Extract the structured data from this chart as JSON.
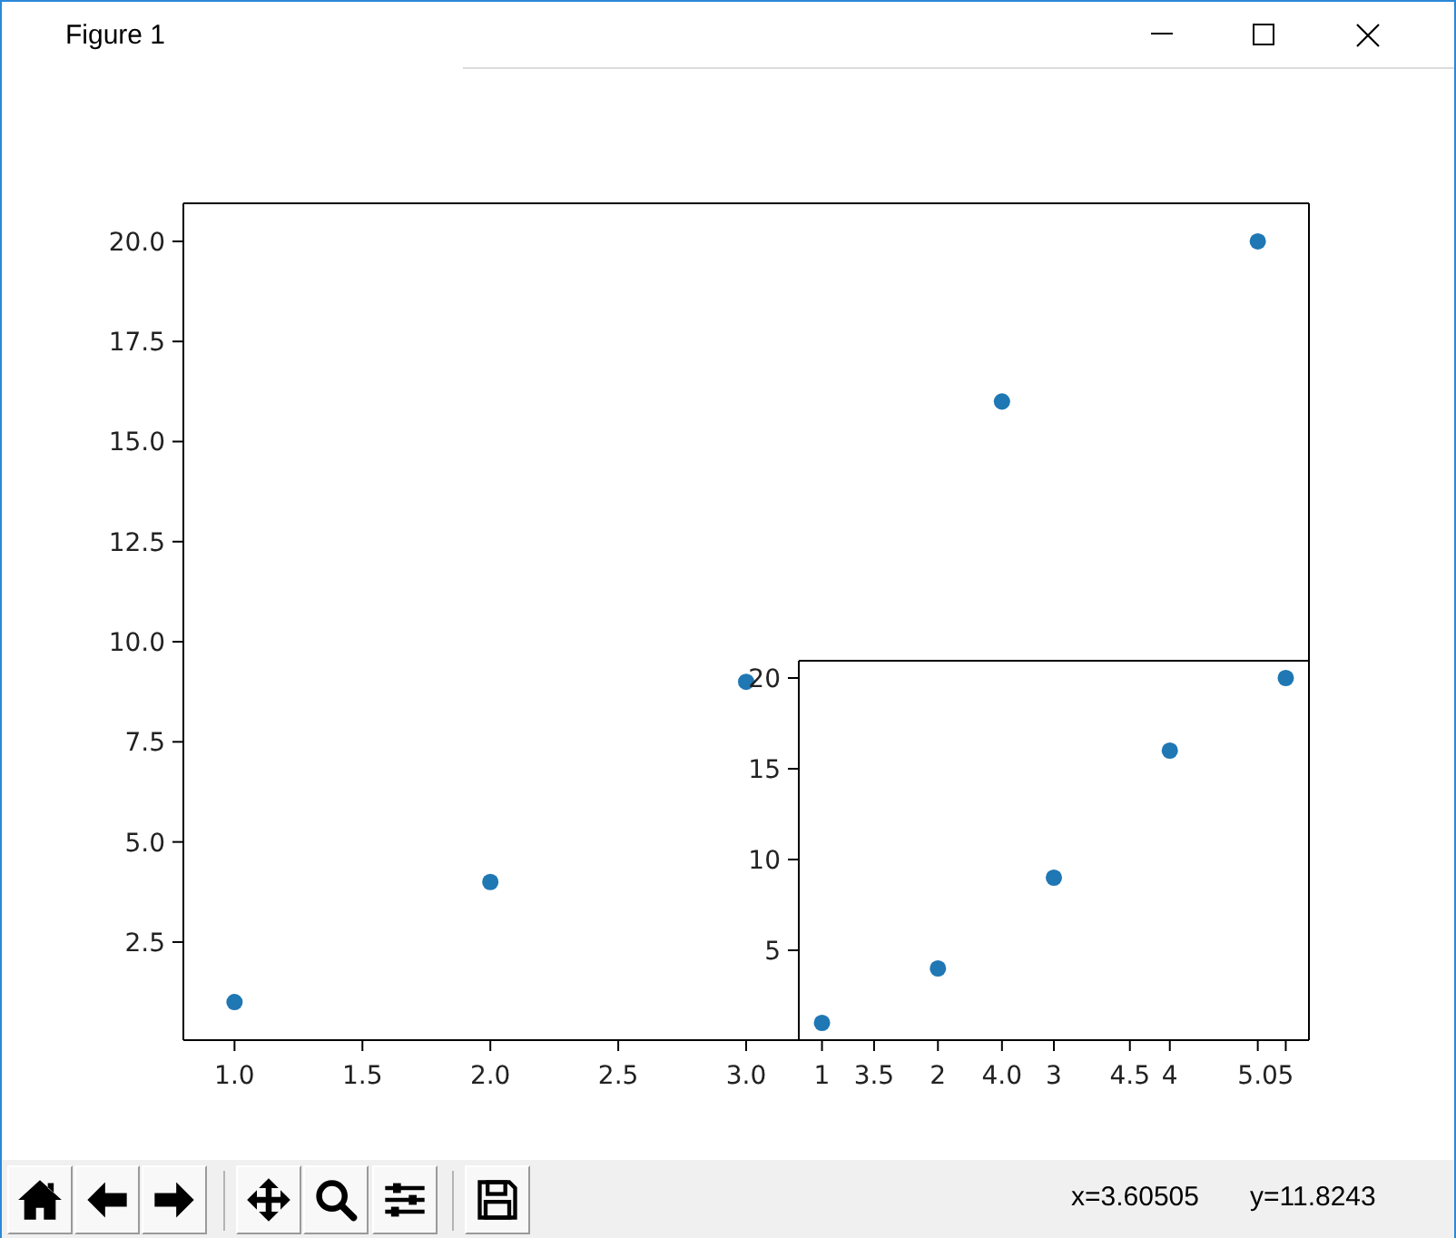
{
  "chart_data": [
    {
      "type": "scatter",
      "x": [
        1,
        2,
        3,
        4,
        5
      ],
      "values": [
        1,
        4,
        9,
        16,
        20
      ],
      "color": "#1f77b4",
      "marker": "circle",
      "xlim": [
        0.8,
        5.2
      ],
      "ylim": [
        0.05,
        20.95
      ],
      "xticks": [
        {
          "value": 1,
          "label": "1.0"
        },
        1.5,
        {
          "value": 2,
          "label": "2.0"
        },
        2.5,
        {
          "value": 3,
          "label": "3.0"
        },
        3.5,
        {
          "value": 4,
          "label": "4.0"
        },
        4.5,
        {
          "value": 5,
          "label": "5.0"
        }
      ],
      "yticks": [
        2.5,
        {
          "value": 5,
          "label": "5.0"
        },
        7.5,
        {
          "value": 10,
          "label": "10.0"
        },
        12.5,
        {
          "value": 15,
          "label": "15.0"
        },
        17.5,
        {
          "value": 20,
          "label": "20.0"
        }
      ],
      "annotations": [
        "Figure 1",
        "x=3.60505",
        "y=11.8243"
      ]
    },
    {
      "type": "scatter",
      "x": [
        1,
        2,
        3,
        4,
        5
      ],
      "values": [
        1,
        4,
        9,
        16,
        20
      ],
      "color": "#1f77b4",
      "marker": "circle",
      "xlim": [
        0.8,
        5.2
      ],
      "ylim": [
        0.05,
        20.95
      ],
      "xticks": [
        1,
        2,
        3,
        4,
        5
      ],
      "yticks": [
        5,
        10,
        15,
        20
      ]
    }
  ]
}
